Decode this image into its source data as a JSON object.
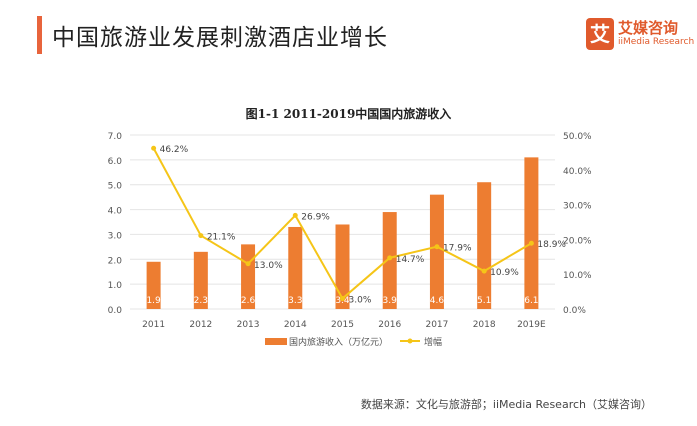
{
  "header": {
    "title": "中国旅游业发展刺激酒店业增长",
    "logo_cn": "艾媒咨询",
    "logo_en": "iiMedia Research",
    "logo_mark": "艾"
  },
  "chart_data": {
    "type": "bar+line",
    "title": "图1-1 2011-2019中国国内旅游收入",
    "categories": [
      "2011",
      "2012",
      "2013",
      "2014",
      "2015",
      "2016",
      "2017",
      "2018",
      "2019E"
    ],
    "series": [
      {
        "name": "国内旅游收入（万亿元）",
        "type": "bar",
        "axis": "left",
        "color": "#ed7d31",
        "values": [
          1.9,
          2.3,
          2.6,
          3.3,
          3.4,
          3.9,
          4.6,
          5.1,
          6.1
        ],
        "labels": [
          "1.9",
          "2.3",
          "2.6",
          "3.3",
          "3.4",
          "3.9",
          "4.6",
          "5.1",
          "6.1"
        ]
      },
      {
        "name": "增幅",
        "type": "line",
        "axis": "right",
        "color": "#f5c518",
        "values": [
          46.2,
          21.1,
          13.0,
          26.9,
          3.0,
          14.7,
          17.9,
          10.9,
          18.9
        ],
        "labels": [
          "46.2%",
          "21.1%",
          "13.0%",
          "26.9%",
          "3.0%",
          "14.7%",
          "17.9%",
          "10.9%",
          "18.9%"
        ]
      }
    ],
    "left_axis": {
      "range": [
        0,
        7
      ],
      "ticks": [
        "0.0",
        "1.0",
        "2.0",
        "3.0",
        "4.0",
        "5.0",
        "6.0",
        "7.0"
      ]
    },
    "right_axis": {
      "range": [
        0,
        50
      ],
      "ticks": [
        "0.0%",
        "10.0%",
        "20.0%",
        "30.0%",
        "40.0%",
        "50.0%"
      ]
    },
    "grid": true,
    "legend": "bottom"
  },
  "source": "数据来源：文化与旅游部；iiMedia Research（艾媒咨询）"
}
